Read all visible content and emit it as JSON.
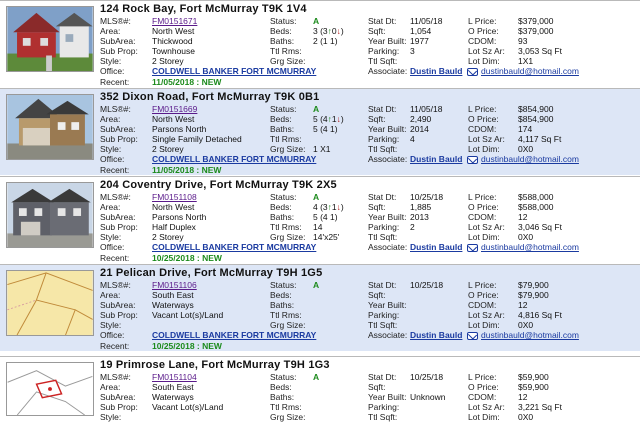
{
  "labels": {
    "mls": "MLS®#:",
    "area": "Area:",
    "subarea": "SubArea:",
    "subprop": "Sub Prop:",
    "style": "Style:",
    "office": "Office:",
    "recent": "Recent:",
    "status": "Status:",
    "beds": "Beds:",
    "baths": "Baths:",
    "ttlrms": "Ttl Rms:",
    "grgsize": "Grg Size:",
    "statdt": "Stat Dt:",
    "sqft": "Sqft:",
    "yearbuilt": "Year Built:",
    "parking": "Parking:",
    "ttlsqft": "Ttl Sqft:",
    "associate": "Associate:",
    "lprice": "L Price:",
    "oprice": "O Price:",
    "cdom": "CDOM:",
    "lotszar": "Lot Sz Ar:",
    "lotdim": "Lot Dim:"
  },
  "listings": [
    {
      "address": "124 Rock Bay, Fort McMurray T9K 1V4",
      "mls": "FM0151671",
      "area": "North West",
      "subarea": "Thickwood",
      "subprop": "Townhouse",
      "style": "2 Storey",
      "office": "COLDWELL BANKER FORT MCMURRAY",
      "recent": "11/05/2018 : NEW",
      "status": "A",
      "beds_a": "3 (3",
      "beds_b": "0",
      "beds_c": ")",
      "baths": "2 (1 1)",
      "ttlrms": "",
      "grgsize": "",
      "statdt": "11/05/18",
      "sqft": "1,054",
      "yearbuilt": "1977",
      "parking": "3",
      "ttlsqft": "",
      "associate": "Dustin Bauld",
      "email": "dustinbauld@hotmail.com",
      "lprice": "$379,000",
      "oprice": "$379,000",
      "cdom": "93",
      "lotszar": "3,053 Sq Ft",
      "lotdim": "1X1"
    },
    {
      "address": "352 Dixon Road, Fort McMurray T9K 0B1",
      "mls": "FM0151669",
      "area": "North West",
      "subarea": "Parsons North",
      "subprop": "Single Family Detached",
      "style": "2 Storey",
      "office": "COLDWELL BANKER FORT MCMURRAY",
      "recent": "11/05/2018 : NEW",
      "status": "A",
      "beds_a": "5 (4",
      "beds_b": "1",
      "beds_c": ")",
      "baths": "5 (4 1)",
      "ttlrms": "",
      "grgsize": "1 X1",
      "statdt": "11/05/18",
      "sqft": "2,490",
      "yearbuilt": "2014",
      "parking": "4",
      "ttlsqft": "",
      "associate": "Dustin Bauld",
      "email": "dustinbauld@hotmail.com",
      "lprice": "$854,900",
      "oprice": "$854,900",
      "cdom": "174",
      "lotszar": "4,117 Sq Ft",
      "lotdim": "0X0"
    },
    {
      "address": "204 Coventry Drive, Fort McMurray T9K 2X5",
      "mls": "FM0151108",
      "area": "North West",
      "subarea": "Parsons North",
      "subprop": "Half Duplex",
      "style": "2 Storey",
      "office": "COLDWELL BANKER FORT MCMURRAY",
      "recent": "10/25/2018 : NEW",
      "status": "A",
      "beds_a": "4 (3",
      "beds_b": "1",
      "beds_c": ")",
      "baths": "5 (4 1)",
      "ttlrms": "14",
      "grgsize": "14'x25'",
      "statdt": "10/25/18",
      "sqft": "1,885",
      "yearbuilt": "2013",
      "parking": "2",
      "ttlsqft": "",
      "associate": "Dustin Bauld",
      "email": "dustinbauld@hotmail.com",
      "lprice": "$588,000",
      "oprice": "$588,000",
      "cdom": "12",
      "lotszar": "3,046 Sq Ft",
      "lotdim": "0X0"
    },
    {
      "address": "21 Pelican Drive, Fort McMurray T9H 1G5",
      "mls": "FM0151106",
      "area": "South East",
      "subarea": "Waterways",
      "subprop": "Vacant Lot(s)/Land",
      "style": "",
      "office": "COLDWELL BANKER FORT MCMURRAY",
      "recent": "10/25/2018 : NEW",
      "status": "A",
      "beds_a": "",
      "beds_b": "",
      "beds_c": "",
      "baths": "",
      "ttlrms": "",
      "grgsize": "",
      "statdt": "10/25/18",
      "sqft": "",
      "yearbuilt": "",
      "parking": "",
      "ttlsqft": "",
      "associate": "Dustin Bauld",
      "email": "dustinbauld@hotmail.com",
      "lprice": "$79,900",
      "oprice": "$79,900",
      "cdom": "12",
      "lotszar": "4,816 Sq Ft",
      "lotdim": "0X0"
    },
    {
      "address": "19 Primrose Lane, Fort McMurray T9H 1G3",
      "mls": "FM0151104",
      "area": "South East",
      "subarea": "Waterways",
      "subprop": "Vacant Lot(s)/Land",
      "status": "A",
      "statdt": "10/25/18",
      "yearbuilt": "Unknown",
      "lprice": "$59,900",
      "oprice": "$59,900",
      "cdom": "12",
      "lotszar": "3,221 Sq Ft",
      "lotdim": "0X0"
    }
  ]
}
